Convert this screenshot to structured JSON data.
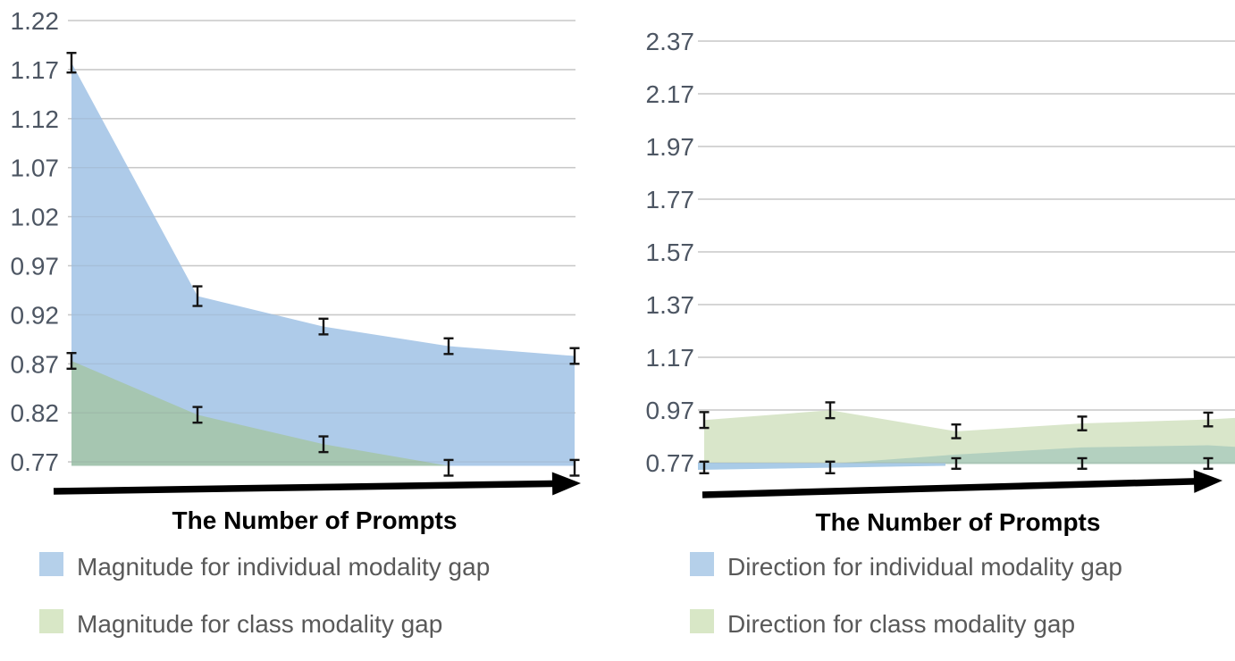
{
  "figure": {
    "background": "#ffffff",
    "error_bar_color": "#141414",
    "gridline_color": "#d5d5d5",
    "tick_label_color": "#4d5663",
    "legend_text_color": "#595959",
    "x_axis_arrow_color": "#000000"
  },
  "chart_data": [
    {
      "type": "area",
      "title": "",
      "xlabel": "The Number of Prompts",
      "x": [
        1,
        2,
        3,
        4,
        5
      ],
      "x_tick_labels": [],
      "x_axis_style": "bold-arrow",
      "ylim": [
        0.77,
        1.22
      ],
      "ytick_step": 0.05,
      "yticks": [
        "1.22",
        "1.17",
        "1.12",
        "1.07",
        "1.02",
        "0.97",
        "0.92",
        "0.87",
        "0.82",
        "0.77"
      ],
      "grid": true,
      "legend_position": "bottom",
      "series": [
        {
          "name": "Magnitude for individual modality gap",
          "color": "#aecbe9",
          "legend_color": "#b5d0ea",
          "values": [
            1.177,
            0.939,
            0.908,
            0.888,
            0.878
          ],
          "errors": [
            0.01,
            0.01,
            0.008,
            0.008,
            0.008
          ]
        },
        {
          "name": "Magnitude for class modality gap",
          "color": "#a6c6b1",
          "legend_color": "#d8e7c6",
          "values": [
            0.873,
            0.818,
            0.788,
            0.764,
            0.764
          ],
          "errors": [
            0.008,
            0.008,
            0.008,
            0.008,
            0.008
          ]
        }
      ]
    },
    {
      "type": "area",
      "title": "",
      "xlabel": "The Number of Prompts",
      "x": [
        1,
        2,
        3,
        4,
        5
      ],
      "x_tick_labels": [],
      "x_axis_style": "bold-arrow",
      "ylim": [
        0.77,
        2.37
      ],
      "ytick_step": 0.2,
      "yticks": [
        "2.37",
        "2.17",
        "1.97",
        "1.77",
        "1.57",
        "1.37",
        "1.17",
        "0.97",
        "0.77"
      ],
      "grid": true,
      "legend_position": "bottom",
      "series": [
        {
          "name": "Direction for individual modality gap",
          "color": "#a9cbe7",
          "legend_color": "#b5d0ea",
          "values": [
            0.752,
            0.752,
            0.767,
            0.767,
            0.767
          ],
          "errors": [
            0.022,
            0.022,
            0.02,
            0.02,
            0.02
          ]
        },
        {
          "name": "Direction for class modality gap",
          "color": "#d9e6ca",
          "legend_color": "#d8e7c6",
          "values": [
            0.932,
            0.969,
            0.889,
            0.919,
            0.934
          ],
          "errors": [
            0.03,
            0.03,
            0.026,
            0.026,
            0.026
          ]
        }
      ],
      "overlap_band": {
        "color": "#b3d0bf",
        "top_values": [
          0.766,
          0.766,
          0.801,
          0.828,
          0.836
        ],
        "edge_value": 0.83
      },
      "class_series_edge_value": 0.94
    }
  ]
}
